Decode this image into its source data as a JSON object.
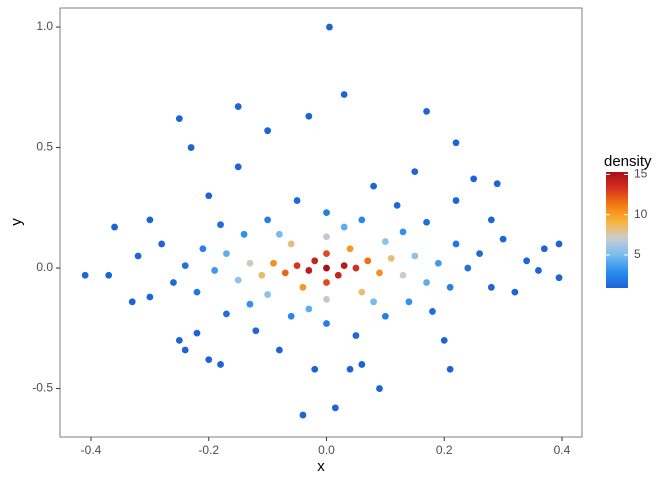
{
  "chart_data": {
    "type": "scatter",
    "xlabel": "x",
    "ylabel": "y",
    "xlim": [
      -0.4527,
      0.434
    ],
    "ylim": [
      -0.701,
      1.079
    ],
    "xticks": [
      -0.4,
      -0.2,
      {
        "value": 0,
        "label": "0.0"
      },
      0.2,
      0.4
    ],
    "yticks": [
      -0.5,
      {
        "value": 0,
        "label": "0.0"
      },
      0.5,
      {
        "value": 1,
        "label": "1.0"
      }
    ],
    "colorbar": {
      "title": "density",
      "lim": [
        0.9,
        15.3
      ],
      "ticks": [
        5,
        10,
        15
      ],
      "colors": [
        "#1d64d4",
        "#2b8ef0",
        "#79bdf0",
        "#c9ccd0",
        "#f8b53a",
        "#f47c12",
        "#d7301f",
        "#a50f15"
      ]
    },
    "x": [
      0.005,
      0.03,
      -0.25,
      -0.15,
      0.17,
      -0.03,
      -0.04,
      0.015,
      0.09,
      -0.41,
      0.395,
      0.395,
      0.37,
      -0.37,
      -0.36,
      0.34,
      -0.24,
      0.21,
      -0.2,
      -0.1,
      0.22,
      -0.23,
      0.29,
      -0.33,
      0.36,
      0.04,
      -0.18,
      0.15,
      -0.15,
      0.25,
      -0.25,
      0.06,
      -0.02,
      0.28,
      -0.3,
      0.22,
      -0.22,
      0.2,
      -0.2,
      0.08,
      -0.08,
      0.32,
      -0.32,
      0.3,
      -0.3,
      0.28,
      -0.28,
      0.12,
      -0.12,
      0.05,
      -0.05,
      0.26,
      -0.26,
      0.17,
      -0.17,
      0.18,
      -0.18,
      0.24,
      -0.24,
      0.0,
      0.0,
      0.22,
      -0.22,
      0.1,
      -0.1,
      0.21,
      -0.21,
      0.06,
      -0.06,
      0.13,
      -0.13,
      0.14,
      -0.14,
      0.19,
      -0.19,
      0.03,
      -0.03,
      0.17,
      -0.17,
      0.08,
      -0.08,
      0.15,
      -0.15,
      0.1,
      -0.1,
      0.0,
      0.0,
      0.13,
      -0.13,
      0.06,
      -0.06,
      0.11,
      -0.11,
      0.04,
      -0.04,
      0.09,
      -0.09,
      0.0,
      0.0,
      0.07,
      -0.07,
      0.05,
      -0.05,
      0.02,
      -0.02,
      0.03,
      -0.03,
      0.0
    ],
    "values": [
      1.0,
      0.72,
      0.62,
      0.67,
      0.65,
      0.63,
      -0.61,
      -0.58,
      -0.5,
      -0.03,
      0.1,
      -0.04,
      0.08,
      -0.03,
      0.17,
      0.03,
      -0.34,
      -0.42,
      -0.38,
      0.57,
      0.52,
      0.5,
      0.35,
      -0.14,
      -0.01,
      -0.42,
      -0.4,
      0.4,
      0.42,
      0.37,
      -0.3,
      -0.4,
      -0.42,
      0.2,
      0.2,
      0.28,
      -0.27,
      -0.3,
      0.3,
      0.34,
      -0.34,
      -0.1,
      0.05,
      0.12,
      -0.12,
      -0.08,
      0.1,
      0.26,
      -0.26,
      -0.28,
      0.28,
      0.06,
      -0.06,
      0.19,
      -0.19,
      -0.18,
      0.18,
      0.0,
      0.01,
      0.23,
      -0.23,
      0.1,
      -0.1,
      -0.2,
      0.2,
      -0.08,
      0.08,
      0.2,
      -0.2,
      0.15,
      -0.15,
      -0.14,
      0.14,
      0.02,
      -0.01,
      0.17,
      -0.17,
      -0.06,
      0.06,
      -0.14,
      0.14,
      0.05,
      -0.05,
      0.11,
      -0.11,
      0.13,
      -0.13,
      -0.03,
      0.02,
      -0.1,
      0.1,
      0.04,
      -0.03,
      0.08,
      -0.08,
      -0.02,
      0.02,
      0.06,
      -0.06,
      0.03,
      -0.02,
      0.0,
      0.01,
      -0.03,
      0.03,
      0.01,
      -0.01,
      0.0
    ],
    "density": [
      0.9,
      0.9,
      0.9,
      0.9,
      0.9,
      0.9,
      0.9,
      0.9,
      0.9,
      0.9,
      0.9,
      0.9,
      0.9,
      0.9,
      0.9,
      0.9,
      0.9,
      0.9,
      0.9,
      0.9,
      0.9,
      0.9,
      0.9,
      0.9,
      0.9,
      0.9,
      0.9,
      0.91,
      0.91,
      0.91,
      0.91,
      0.91,
      0.91,
      0.92,
      0.92,
      0.93,
      0.93,
      0.93,
      0.93,
      0.92,
      0.92,
      0.92,
      0.92,
      0.95,
      0.95,
      1.0,
      1.0,
      1.1,
      1.1,
      1.1,
      1.1,
      1.2,
      1.2,
      1.4,
      1.4,
      1.4,
      1.4,
      1.6,
      1.6,
      2.1,
      2.1,
      1.8,
      1.8,
      2.2,
      2.2,
      2.3,
      2.3,
      2.6,
      2.6,
      3.1,
      3.1,
      3.1,
      3.1,
      3.4,
      3.4,
      4.3,
      4.3,
      4.3,
      4.3,
      4.9,
      4.9,
      5.6,
      5.6,
      5.5,
      5.5,
      6.8,
      6.8,
      7.2,
      7.3,
      8.2,
      8.2,
      8.3,
      8.5,
      10.2,
      10.2,
      10.5,
      10.5,
      12.5,
      12.5,
      11.5,
      11.8,
      13.3,
      13.2,
      14.0,
      14.0,
      14.5,
      14.3,
      15.2
    ]
  }
}
